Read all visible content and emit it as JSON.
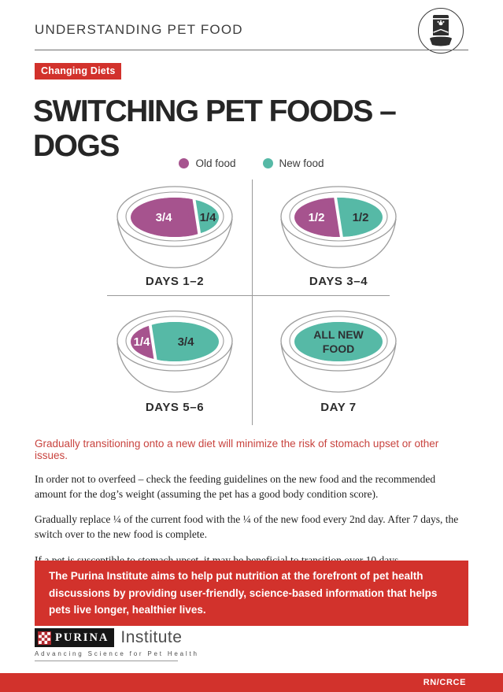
{
  "header": {
    "title": "UNDERSTANDING PET FOOD",
    "icon": "pet-food-bag-and-bowl"
  },
  "badge": {
    "label": "Changing Diets"
  },
  "main_title": "SWITCHING PET FOODS – DOGS",
  "legend": {
    "old": {
      "label": "Old food",
      "color": "#A6538E"
    },
    "new": {
      "label": "New food",
      "color": "#56B9A6"
    }
  },
  "chart_data": {
    "type": "diagram",
    "subtype": "bowl-portion-sequence",
    "bowls": [
      {
        "day_label": "DAYS 1–2",
        "portions": [
          {
            "food": "old",
            "label": "3/4",
            "fraction": 0.75
          },
          {
            "food": "new",
            "label": "1/4",
            "fraction": 0.25
          }
        ]
      },
      {
        "day_label": "DAYS 3–4",
        "portions": [
          {
            "food": "old",
            "label": "1/2",
            "fraction": 0.5
          },
          {
            "food": "new",
            "label": "1/2",
            "fraction": 0.5
          }
        ]
      },
      {
        "day_label": "DAYS 5–6",
        "portions": [
          {
            "food": "old",
            "label": "1/4",
            "fraction": 0.25
          },
          {
            "food": "new",
            "label": "3/4",
            "fraction": 0.75
          }
        ]
      },
      {
        "day_label": "DAY 7",
        "portions": [
          {
            "food": "new",
            "label": "ALL NEW\nFOOD",
            "fraction": 1
          }
        ]
      }
    ]
  },
  "content": {
    "highlight": "Gradually transitioning onto a new diet will minimize the risk of stomach upset or other issues.",
    "paragraphs": [
      "In order not to overfeed – check the feeding guidelines on the new food and the recommended amount for the dog’s weight (assuming the pet has a good body condition score).",
      "Gradually replace ¼ of the current food with the ¼ of the new food every 2nd day. After 7 days, the switch over to the new food is complete.",
      "If a pet is susceptible to stomach upset, it may be beneficial to transition over 10 days."
    ]
  },
  "callout": {
    "text": "The Purina Institute aims to help put nutrition at the forefront of pet health discussions by providing user-friendly, science-based information that helps pets live longer, healthier lives."
  },
  "footer": {
    "logo_brand": "PURINA",
    "logo_suffix": "Institute",
    "tagline": "Advancing Science for Pet Health",
    "bar_code": "RN/CRCE"
  },
  "colors": {
    "accent_red": "#D2322C",
    "old_food": "#A6538E",
    "new_food": "#56B9A6",
    "bowl_stroke": "#9c9c9c",
    "ink_dark": "#2e3033"
  }
}
